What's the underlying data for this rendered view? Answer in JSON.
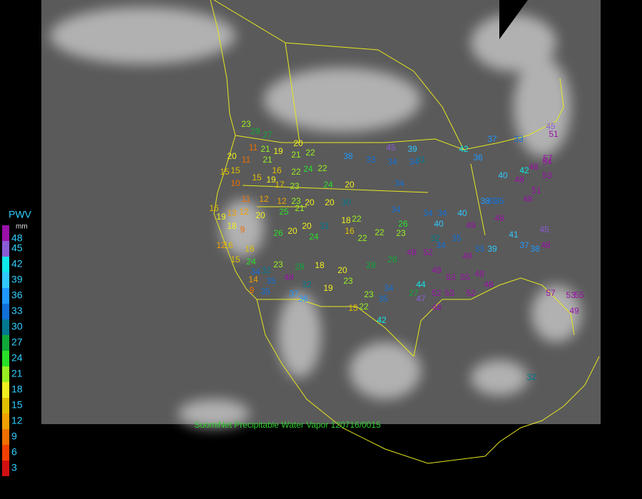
{
  "legend": {
    "title": "PWV",
    "unit": "mm",
    "ticks": [
      {
        "value": 48,
        "color": "#9a10a8"
      },
      {
        "value": 45,
        "color": "#8a5cd8"
      },
      {
        "value": 42,
        "color": "#10e8e8"
      },
      {
        "value": 39,
        "color": "#30c8ff"
      },
      {
        "value": 36,
        "color": "#1e98ff"
      },
      {
        "value": 33,
        "color": "#1070d8"
      },
      {
        "value": 30,
        "color": "#007890"
      },
      {
        "value": 27,
        "color": "#10a838"
      },
      {
        "value": 24,
        "color": "#28e028"
      },
      {
        "value": 21,
        "color": "#98f020"
      },
      {
        "value": 18,
        "color": "#f0f020"
      },
      {
        "value": 15,
        "color": "#e0c000"
      },
      {
        "value": 12,
        "color": "#f0a000"
      },
      {
        "value": 9,
        "color": "#f07000"
      },
      {
        "value": 6,
        "color": "#f04000"
      },
      {
        "value": 3,
        "color": "#d01010"
      }
    ]
  },
  "caption": "SuomiNet Precipitable Water Vapor 120716/0015",
  "stations": [
    23,
    29,
    27,
    11,
    21,
    19,
    20,
    11,
    21,
    16,
    20,
    21,
    22,
    24,
    22,
    22,
    15,
    15,
    15,
    19,
    17,
    23,
    24,
    20,
    38,
    33,
    45,
    39,
    34,
    34,
    34,
    31,
    10,
    11,
    12,
    12,
    23,
    20,
    20,
    30,
    16,
    13,
    12,
    20,
    25,
    21,
    19,
    18,
    9,
    12,
    16,
    16,
    26,
    20,
    20,
    31,
    18,
    22,
    24,
    16,
    22,
    22,
    34,
    26,
    23,
    34,
    40,
    34,
    40,
    38,
    35,
    35,
    48,
    49,
    35,
    32,
    49,
    52,
    34,
    49,
    33,
    39,
    41,
    37,
    38,
    48,
    45,
    42,
    36,
    40,
    42,
    48,
    53,
    51,
    54,
    57,
    48,
    48,
    37,
    33,
    45,
    51,
    49,
    53,
    55,
    48,
    52,
    53,
    52,
    48,
    48,
    44,
    47,
    57,
    53,
    55,
    49,
    32,
    15,
    24,
    34,
    32,
    23,
    28,
    18,
    20,
    48,
    35,
    14,
    9,
    35,
    37,
    32,
    36,
    19,
    23,
    28,
    28,
    23,
    34,
    35,
    22,
    15,
    42,
    27
  ]
}
